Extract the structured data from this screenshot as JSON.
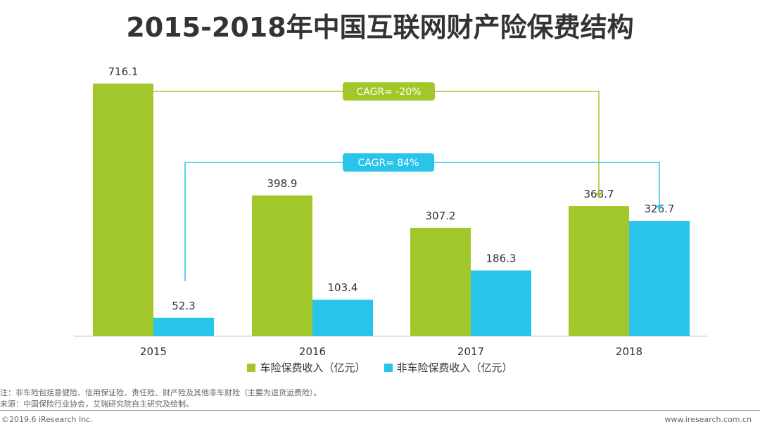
{
  "title": "2015-2018年中国互联网财产险保费结构",
  "chart_data": {
    "type": "bar",
    "categories": [
      "2015",
      "2016",
      "2017",
      "2018"
    ],
    "series": [
      {
        "name": "车险保费收入（亿元）",
        "values": [
          716.1,
          398.9,
          307.2,
          368.7
        ],
        "color": "#a2c72a"
      },
      {
        "name": "非车险保费收入（亿元）",
        "values": [
          52.3,
          103.4,
          186.3,
          326.7
        ],
        "color": "#28c4ea"
      }
    ],
    "value_labels": [
      [
        "716.1",
        "398.9",
        "307.2",
        "368.7"
      ],
      [
        "52.3",
        "103.4",
        "186.3",
        "326.7"
      ]
    ],
    "ylim": [
      0,
      800
    ],
    "annotations": [
      {
        "text": "CAGR= -20%",
        "series": 0,
        "from": "2015",
        "to": "2018",
        "color": "#a2c72a"
      },
      {
        "text": "CAGR= 84%",
        "series": 1,
        "from": "2015",
        "to": "2018",
        "color": "#28c4ea"
      }
    ],
    "xlabel": "",
    "ylabel": ""
  },
  "notes": {
    "note1": "注：非车险包括意健险、信用保证险、责任险、财产险及其他非车财险（主要为退货运费险）。",
    "note2": "来源：中国保险行业协会，艾瑞研究院自主研究及绘制。"
  },
  "footer": {
    "left": "©2019.6 iResearch Inc.",
    "right": "www.iresearch.com.cn"
  }
}
